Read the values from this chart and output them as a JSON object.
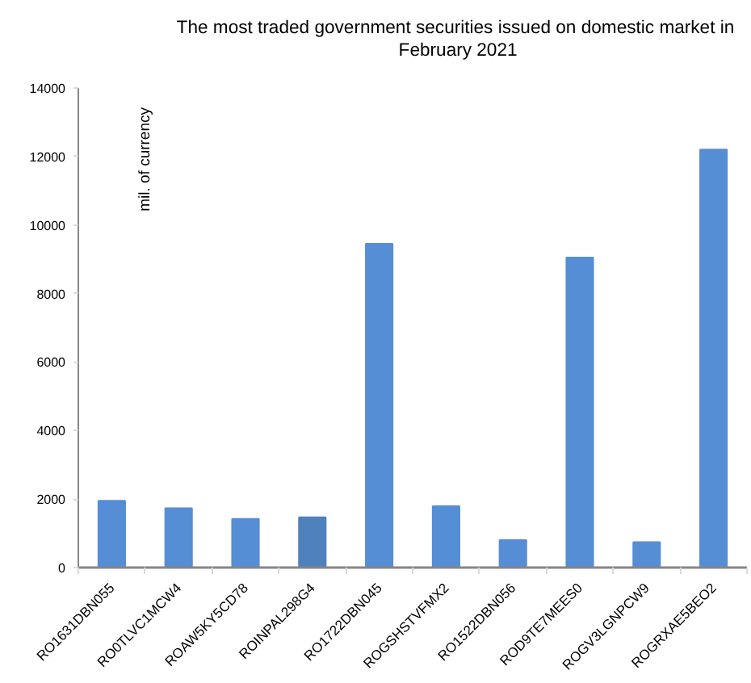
{
  "chart_data": {
    "type": "bar",
    "title": "The most  traded government securities issued on domestic market in\nFebruary 2021",
    "ylabel": "mil. of currency",
    "categories": [
      "RO1631DBN055",
      "RO0TLVC1MCW4",
      "ROAW5KY5CD78",
      "ROINPAL298G4",
      "RO1722DBN045",
      "ROGSHSTVFMX2",
      "RO1522DBN056",
      "ROD9TE7MEES0",
      "ROGV3LGNPCW9",
      "ROGRXAE5BEO2"
    ],
    "values": [
      1950,
      1730,
      1420,
      1470,
      9450,
      1790,
      800,
      9050,
      740,
      12200
    ],
    "colors": [
      "#558ed5",
      "#558ed5",
      "#558ed5",
      "#4f81bd",
      "#558ed5",
      "#558ed5",
      "#558ed5",
      "#558ed5",
      "#558ed5",
      "#558ed5"
    ],
    "ylim": [
      0,
      14000
    ],
    "yticks": [
      0,
      2000,
      4000,
      6000,
      8000,
      10000,
      12000,
      14000
    ],
    "grid": false
  }
}
